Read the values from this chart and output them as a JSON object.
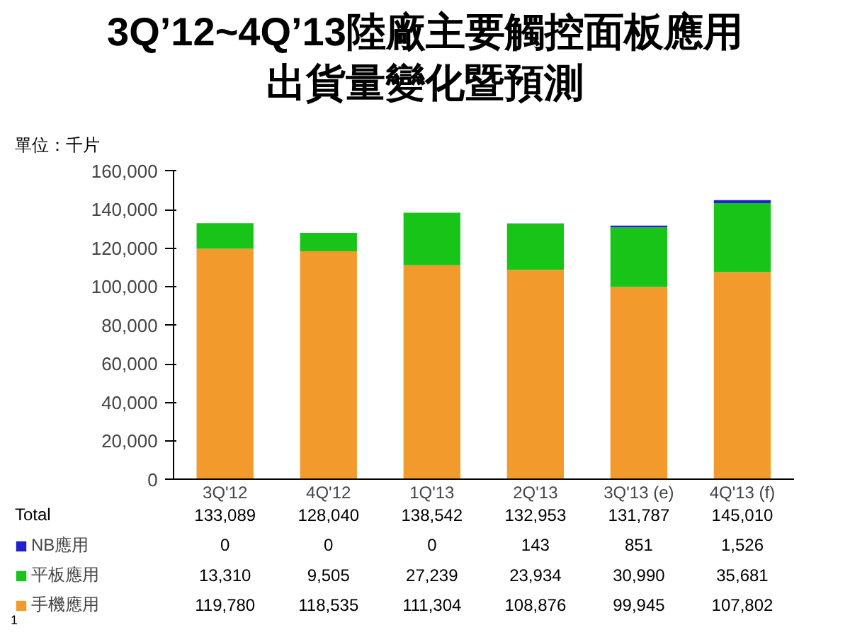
{
  "chart_data": {
    "type": "bar",
    "stacked": true,
    "title": "3Q’12~4Q’13陸廠主要觸控面板應用出貨量變化暨預測",
    "ylabel": "單位：千片",
    "categories": [
      "3Q'12",
      "4Q'12",
      "1Q'13",
      "2Q'13",
      "3Q'13 (e)",
      "4Q'13 (f)"
    ],
    "series": [
      {
        "name": "手機應用",
        "color": "#f39a2c",
        "values": [
          119780,
          118535,
          111304,
          108876,
          99945,
          107802
        ],
        "value_labels": [
          "119,780",
          "118,535",
          "111,304",
          "108,876",
          "99,945",
          "107,802"
        ]
      },
      {
        "name": "平板應用",
        "color": "#19c419",
        "values": [
          13310,
          9505,
          27239,
          23934,
          30990,
          35681
        ],
        "value_labels": [
          "13,310",
          "9,505",
          "27,239",
          "23,934",
          "30,990",
          "35,681"
        ]
      },
      {
        "name": "NB應用",
        "color": "#1f1fd0",
        "values": [
          0,
          0,
          0,
          143,
          851,
          1526
        ],
        "value_labels": [
          "0",
          "0",
          "0",
          "143",
          "851",
          "1,526"
        ]
      }
    ],
    "totals": [
      "133,089",
      "128,040",
      "138,542",
      "132,953",
      "131,787",
      "145,010"
    ],
    "ylim": [
      0,
      160000
    ],
    "yticks": [
      0,
      {
        "value": 20000,
        "label": "20,000"
      },
      {
        "value": 40000,
        "label": "40,000"
      },
      {
        "value": 60000,
        "label": "60,000"
      },
      {
        "value": 80000,
        "label": "80,000"
      },
      {
        "value": 100000,
        "label": "100,000"
      },
      {
        "value": 120000,
        "label": "120,000"
      },
      {
        "value": 140000,
        "label": "140,000"
      },
      {
        "value": 160000,
        "label": "160,000"
      }
    ],
    "legend": "bottom",
    "grid": false,
    "annotations": [
      "Total",
      "1"
    ]
  }
}
